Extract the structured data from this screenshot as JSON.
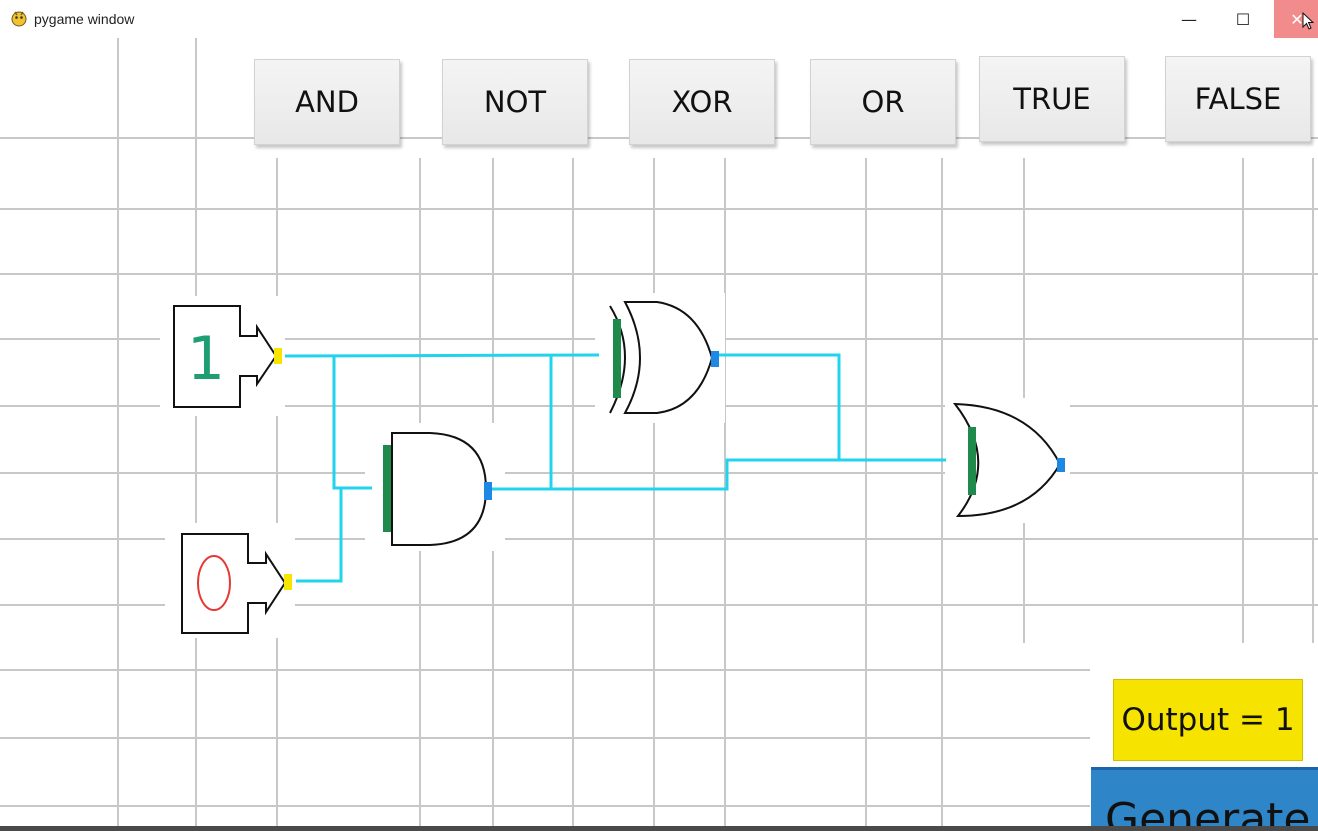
{
  "window": {
    "title": "pygame window",
    "app_icon": "pygame-icon",
    "controls": {
      "minimize_glyph": "—",
      "maximize_glyph": "☐",
      "close_glyph": "✕"
    }
  },
  "toolbar": {
    "buttons": [
      {
        "label": "AND"
      },
      {
        "label": "NOT"
      },
      {
        "label": "XOR"
      },
      {
        "label": "OR"
      },
      {
        "label": "TRUE"
      },
      {
        "label": "FALSE"
      }
    ]
  },
  "circuit": {
    "inputs": [
      {
        "value": "1",
        "color": "#1f9e73"
      },
      {
        "value": "0",
        "color": "#e53935"
      }
    ],
    "gates": [
      "XOR",
      "AND",
      "OR"
    ],
    "wire_color": "#22d3ee",
    "input_pin_color": "#f7e500",
    "gate_input_color": "#1f8a4c",
    "gate_output_color": "#1e88e5"
  },
  "output": {
    "label": "Output = 1"
  },
  "generate": {
    "label": "Generate"
  }
}
